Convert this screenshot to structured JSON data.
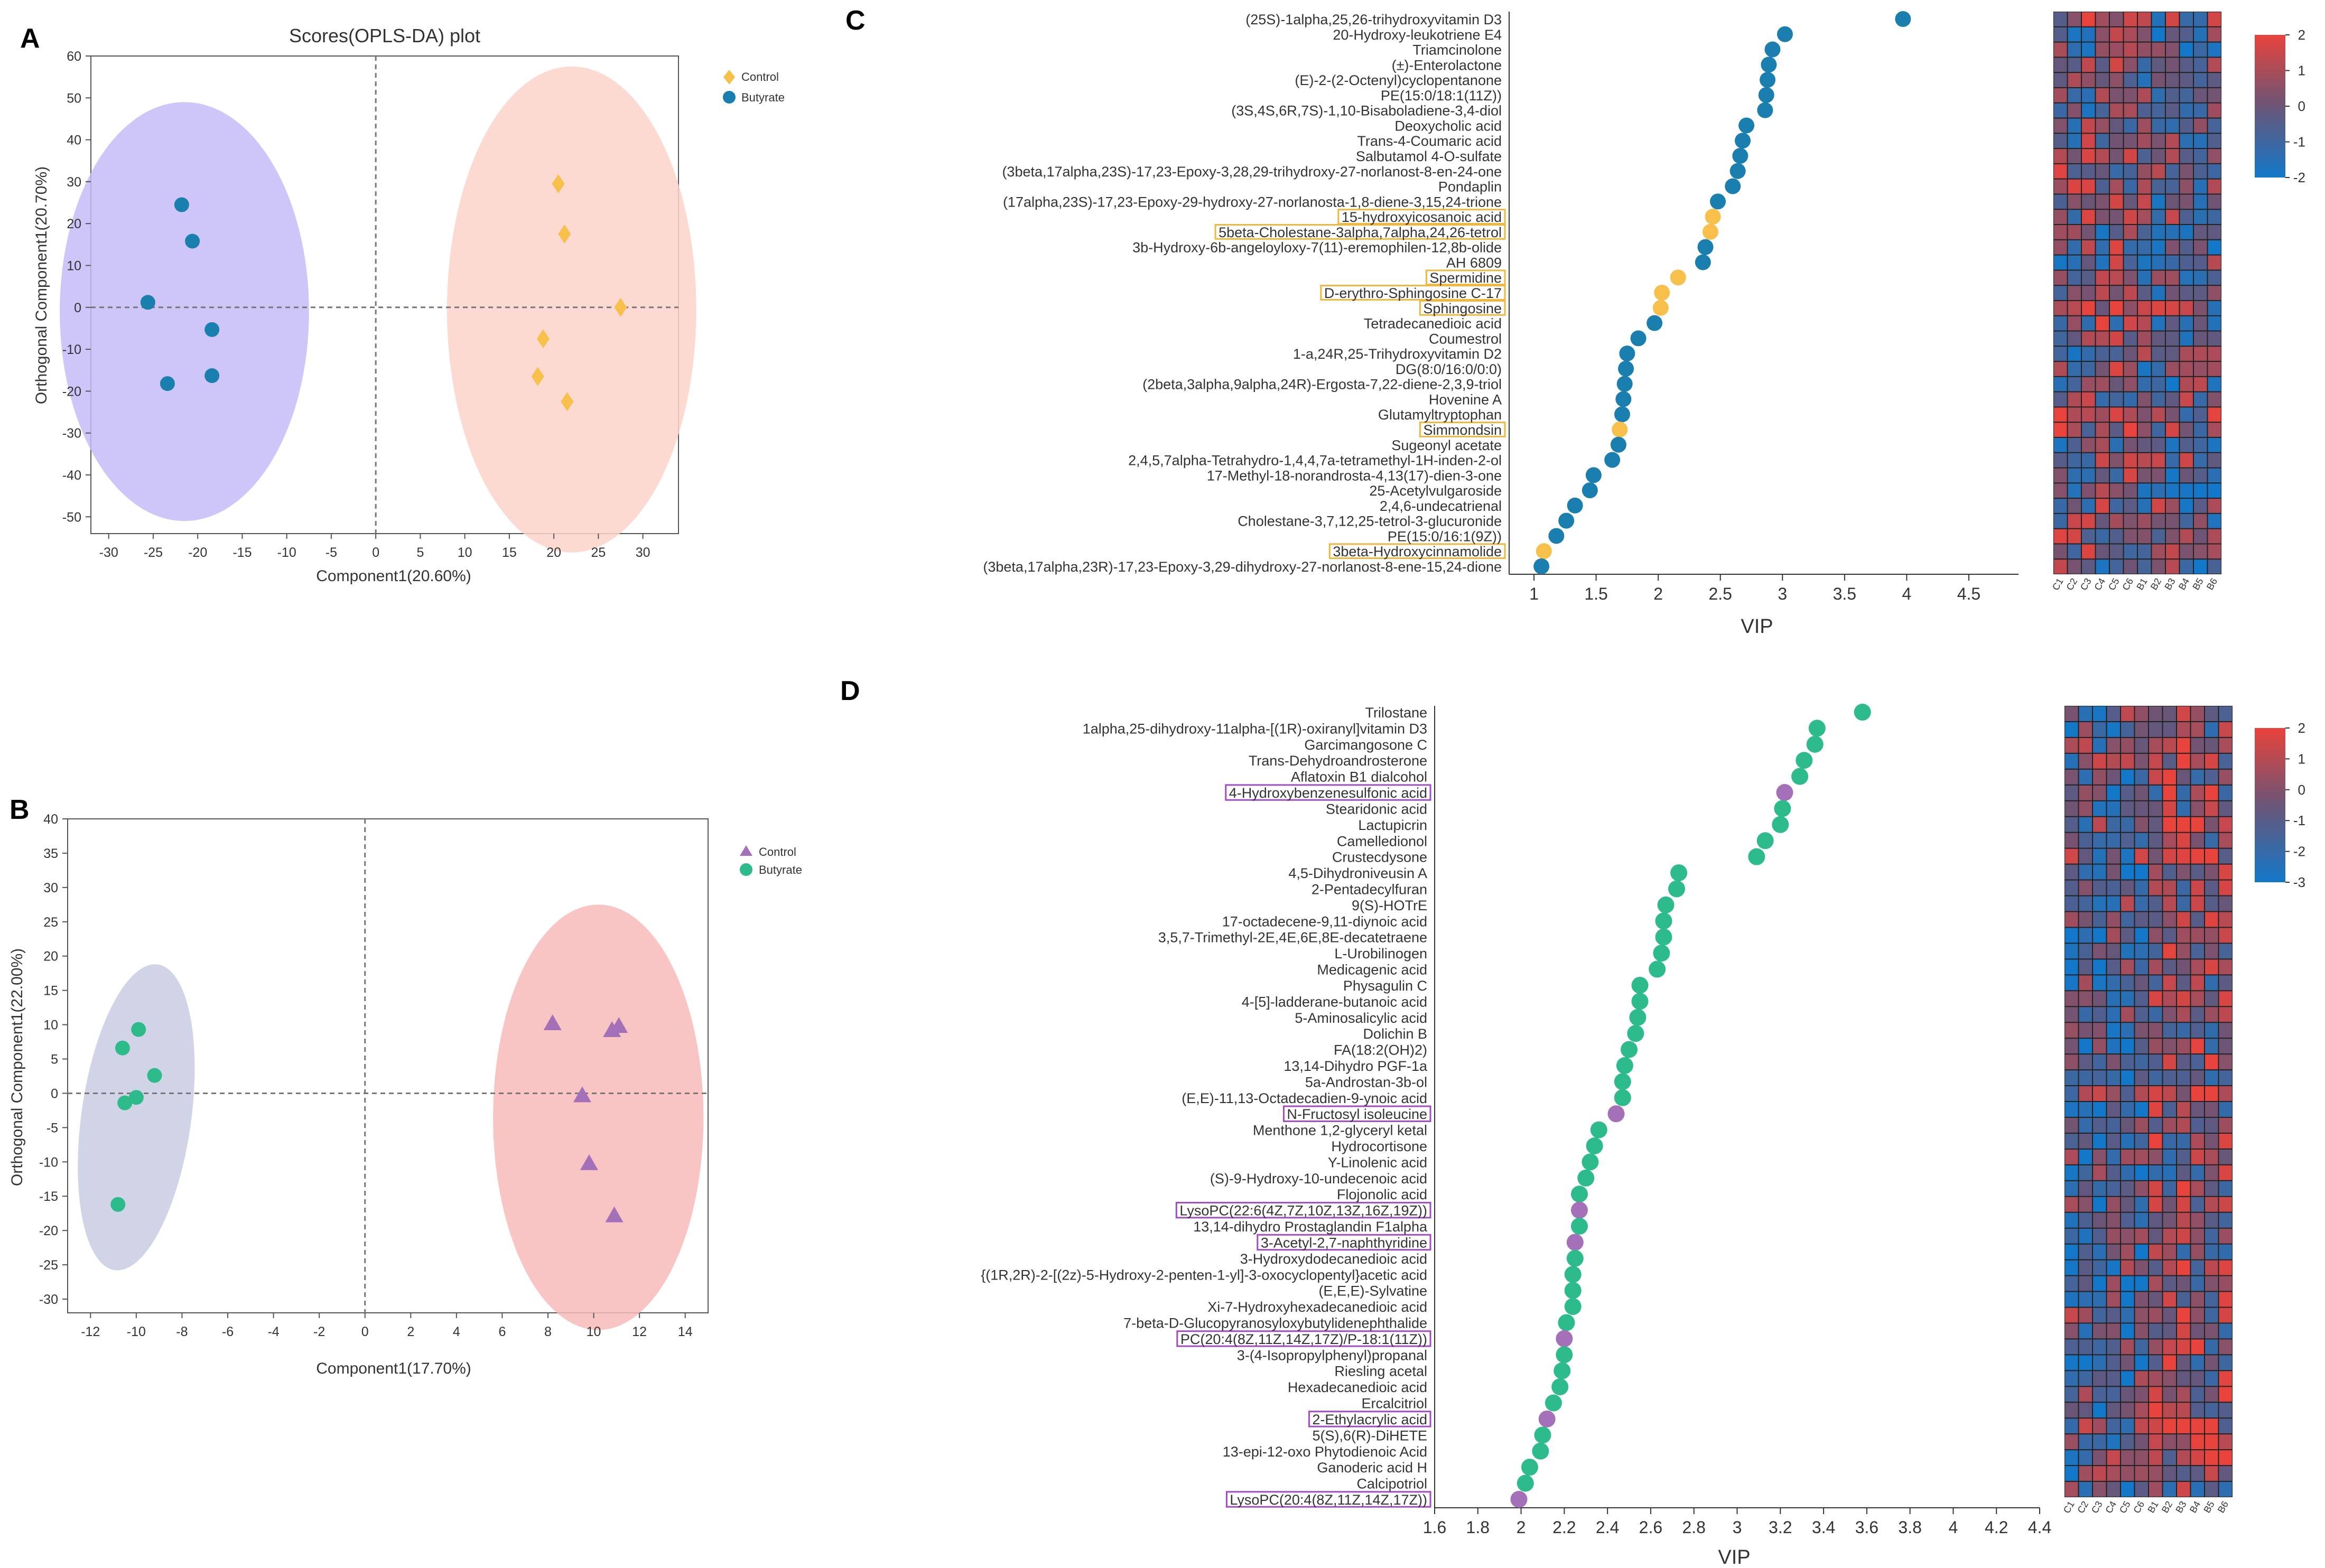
{
  "panels": {
    "A": "A",
    "B": "B",
    "C": "C",
    "D": "D"
  },
  "colors": {
    "control_gold": "#F7C04A",
    "butyrate_blue": "#1A7FAF",
    "ellipse_purple": "#C5BCF7",
    "ellipse_salmon": "#FBD3C9",
    "control_purple": "#A470B8",
    "butyrate_green": "#2DBB8C",
    "ellipse_slate": "#C9CCE3",
    "ellipse_pink": "#F8BABA",
    "highlight_gold": "#F0B73D",
    "highlight_purple": "#A54BC2",
    "heat_red": "#E8433C",
    "heat_blue": "#1378C9",
    "heat_mid": "#6A5577"
  },
  "chart_data": [
    {
      "id": "A",
      "type": "scatter",
      "title": "Scores(OPLS-DA) plot",
      "xlabel": "Component1(20.60%)",
      "ylabel": "Orthogonal Component1(20.70%)",
      "xlim": [
        -32,
        34
      ],
      "ylim": [
        -54,
        60
      ],
      "xticks": [
        -30,
        -25,
        -20,
        -15,
        -10,
        -5,
        0,
        5,
        10,
        15,
        20,
        25,
        30
      ],
      "yticks": [
        60,
        50,
        40,
        30,
        20,
        10,
        0,
        -10,
        -20,
        -30,
        -40,
        -50
      ],
      "legend": [
        "Control",
        "Butyrate"
      ],
      "series": [
        {
          "name": "Control",
          "marker": "diamond",
          "color": "#F7C04A",
          "x": [
            20.5,
            21.2,
            27.5,
            18.8,
            18.2,
            21.5
          ],
          "y": [
            29.5,
            17.5,
            0,
            -7.5,
            -16.5,
            -22.5
          ]
        },
        {
          "name": "Butyrate",
          "marker": "circle",
          "color": "#1A7FAF",
          "x": [
            -21.8,
            -20.6,
            -25.6,
            -18.4,
            -18.4,
            -23.4
          ],
          "y": [
            24.5,
            15.8,
            1.2,
            -5.3,
            -16.3,
            -18.2
          ]
        }
      ],
      "ellipses": [
        {
          "group": "Butyrate",
          "cx": -21.5,
          "cy": -1,
          "rx": 14,
          "ry": 50,
          "color": "#C5BCF7"
        },
        {
          "group": "Control",
          "cx": 22,
          "cy": -0.5,
          "rx": 14,
          "ry": 58,
          "color": "#FBD3C9"
        }
      ]
    },
    {
      "id": "B",
      "type": "scatter",
      "title": "",
      "xlabel": "Component1(17.70%)",
      "ylabel": "Orthogonal Component1(22.00%)",
      "xlim": [
        -13,
        15
      ],
      "ylim": [
        -32,
        40
      ],
      "xticks": [
        -12,
        -10,
        -8,
        -6,
        -4,
        -2,
        0,
        2,
        4,
        6,
        8,
        10,
        12,
        14
      ],
      "yticks": [
        40,
        35,
        30,
        25,
        20,
        15,
        10,
        5,
        0,
        -5,
        -10,
        -15,
        -20,
        -25,
        -30
      ],
      "legend": [
        "Control",
        "Butyrate"
      ],
      "series": [
        {
          "name": "Control",
          "marker": "triangle",
          "color": "#A470B8",
          "x": [
            8.2,
            10.8,
            11.1,
            9.5,
            9.8,
            10.9
          ],
          "y": [
            10.2,
            9.2,
            9.8,
            -0.3,
            -10.2,
            -17.8
          ]
        },
        {
          "name": "Butyrate",
          "marker": "circle",
          "color": "#2DBB8C",
          "x": [
            -9.9,
            -10.6,
            -9.2,
            -10.0,
            -10.5,
            -10.8
          ],
          "y": [
            9.3,
            6.6,
            2.6,
            -0.6,
            -1.4,
            -16.2
          ]
        }
      ],
      "ellipses": [
        {
          "group": "Butyrate",
          "cx": -10.0,
          "cy": -3.5,
          "rx": 2.4,
          "ry": 22.5,
          "rot": 8,
          "color": "#C9CCE3"
        },
        {
          "group": "Control",
          "cx": 10.2,
          "cy": -3.5,
          "rx": 4.6,
          "ry": 31,
          "color": "#F8BABA"
        }
      ]
    },
    {
      "id": "C",
      "type": "scatter",
      "title": "",
      "xlabel": "VIP",
      "xlim": [
        0.8,
        4.9
      ],
      "xticks": [
        1,
        1.5,
        2,
        2.5,
        3,
        3.5,
        4,
        4.5
      ],
      "xtick_labels": [
        "1",
        "1.5",
        "2",
        "2.5",
        "3",
        "3.5",
        "4",
        "4.5"
      ],
      "labels": [
        "(25S)-1alpha,25,26-trihydroxyvitamin D3",
        "20-Hydroxy-leukotriene E4",
        "Triamcinolone",
        "(±)-Enterolactone",
        "(E)-2-(2-Octenyl)cyclopentanone",
        "PE(15:0/18:1(11Z))",
        "(3S,4S,6R,7S)-1,10-Bisaboladiene-3,4-diol",
        "Deoxycholic acid",
        "Trans-4-Coumaric acid",
        "Salbutamol 4-O-sulfate",
        "(3beta,17alpha,23S)-17,23-Epoxy-3,28,29-trihydroxy-27-norlanost-8-en-24-one",
        "Pondaplin",
        "(17alpha,23S)-17,23-Epoxy-29-hydroxy-27-norlanosta-1,8-diene-3,15,24-trione",
        "15-hydroxyicosanoic acid",
        "5beta-Cholestane-3alpha,7alpha,24,26-tetrol",
        "3b-Hydroxy-6b-angeloyloxy-7(11)-eremophilen-12,8b-olide",
        "AH 6809",
        "Spermidine",
        "D-erythro-Sphingosine C-17",
        "Sphingosine",
        "Tetradecanedioic acid",
        "Coumestrol",
        "1-a,24R,25-Trihydroxyvitamin D2",
        "DG(8:0/16:0/0:0)",
        "(2beta,3alpha,9alpha,24R)-Ergosta-7,22-diene-2,3,9-triol",
        "Hovenine A",
        "Glutamyltryptophan",
        "Simmondsin",
        "Sugeonyl acetate",
        "2,4,5,7alpha-Tetrahydro-1,4,4,7a-tetramethyl-1H-inden-2-ol",
        "17-Methyl-18-norandrosta-4,13(17)-dien-3-one",
        "25-Acetylvulgaroside",
        "2,4,6-undecatrienal",
        "Cholestane-3,7,12,25-tetrol-3-glucuronide",
        "PE(15:0/16:1(9Z))",
        "3beta-Hydroxycinnamolide",
        "(3beta,17alpha,23R)-17,23-Epoxy-3,29-dihydroxy-27-norlanost-8-ene-15,24-dione"
      ],
      "values": [
        3.97,
        3.02,
        2.92,
        2.89,
        2.88,
        2.87,
        2.86,
        2.71,
        2.68,
        2.66,
        2.64,
        2.6,
        2.48,
        2.44,
        2.42,
        2.38,
        2.36,
        2.16,
        2.03,
        2.02,
        1.97,
        1.84,
        1.75,
        1.74,
        1.73,
        1.72,
        1.71,
        1.69,
        1.68,
        1.63,
        1.48,
        1.45,
        1.33,
        1.26,
        1.18,
        1.08,
        1.06
      ],
      "group": [
        "B",
        "B",
        "B",
        "B",
        "B",
        "B",
        "B",
        "B",
        "B",
        "B",
        "B",
        "B",
        "B",
        "C",
        "C",
        "B",
        "B",
        "C",
        "C",
        "C",
        "B",
        "B",
        "B",
        "B",
        "B",
        "B",
        "B",
        "C",
        "B",
        "B",
        "B",
        "B",
        "B",
        "B",
        "B",
        "C",
        "B"
      ],
      "highlighted": [
        13,
        14,
        17,
        18,
        19,
        27,
        35
      ],
      "highlight_color": "#F0B73D"
    },
    {
      "id": "D",
      "type": "scatter",
      "title": "",
      "xlabel": "VIP",
      "xlim": [
        1.6,
        4.4
      ],
      "xticks": [
        1.6,
        1.8,
        2,
        2.2,
        2.4,
        2.6,
        2.8,
        3,
        3.2,
        3.4,
        3.6,
        3.8,
        4,
        4.2,
        4.4
      ],
      "xtick_labels": [
        "1.6",
        "1.8",
        "2",
        "2.2",
        "2.4",
        "2.6",
        "2.8",
        "3",
        "3.2",
        "3.4",
        "3.6",
        "3.8",
        "4",
        "4.2",
        "4.4"
      ],
      "labels": [
        "Trilostane",
        "1alpha,25-dihydroxy-11alpha-[(1R)-oxiranyl]vitamin D3",
        "Garcimangosone C",
        "Trans-Dehydroandrosterone",
        "Aflatoxin B1 dialcohol",
        "4-Hydroxybenzenesulfonic acid",
        "Stearidonic acid",
        "Lactupicrin",
        "Camelledionol",
        "Crustecdysone",
        "4,5-Dihydroniveusin A",
        "2-Pentadecylfuran",
        "9(S)-HOTrE",
        "17-octadecene-9,11-diynoic acid",
        "3,5,7-Trimethyl-2E,4E,6E,8E-decatetraene",
        "L-Urobilinogen",
        "Medicagenic acid",
        "Physagulin C",
        "4-[5]-ladderane-butanoic acid",
        "5-Aminosalicylic acid",
        "Dolichin B",
        "FA(18:2(OH)2)",
        "13,14-Dihydro PGF-1a",
        "5a-Androstan-3b-ol",
        "(E,E)-11,13-Octadecadien-9-ynoic acid",
        "N-Fructosyl isoleucine",
        "Menthone 1,2-glyceryl ketal",
        "Hydrocortisone",
        "Y-Linolenic acid",
        "(S)-9-Hydroxy-10-undecenoic acid",
        "Flojonolic acid",
        "LysoPC(22:6(4Z,7Z,10Z,13Z,16Z,19Z))",
        "13,14-dihydro Prostaglandin F1alpha",
        "3-Acetyl-2,7-naphthyridine",
        "3-Hydroxydodecanedioic acid",
        "{(1R,2R)-2-[(2z)-5-Hydroxy-2-penten-1-yl]-3-oxocyclopentyl}acetic acid",
        "(E,E,E)-Sylvatine",
        "Xi-7-Hydroxyhexadecanedioic acid",
        "7-beta-D-Glucopyranosyloxybutylidenephthalide",
        "PC(20:4(8Z,11Z,14Z,17Z)/P-18:1(11Z))",
        "3-(4-Isopropylphenyl)propanal",
        "Riesling acetal",
        "Hexadecanedioic acid",
        "Ercalcitriol",
        "2-Ethylacrylic acid",
        "5(S),6(R)-DiHETE",
        "13-epi-12-oxo Phytodienoic Acid",
        "Ganoderic acid H",
        "Calcipotriol",
        "LysoPC(20:4(8Z,11Z,14Z,17Z))"
      ],
      "values": [
        3.58,
        3.37,
        3.36,
        3.31,
        3.29,
        3.22,
        3.21,
        3.2,
        3.13,
        3.09,
        2.73,
        2.72,
        2.67,
        2.66,
        2.66,
        2.65,
        2.63,
        2.55,
        2.55,
        2.54,
        2.53,
        2.5,
        2.48,
        2.47,
        2.47,
        2.44,
        2.36,
        2.34,
        2.32,
        2.3,
        2.27,
        2.27,
        2.27,
        2.25,
        2.25,
        2.24,
        2.24,
        2.24,
        2.21,
        2.2,
        2.2,
        2.19,
        2.18,
        2.15,
        2.12,
        2.1,
        2.09,
        2.04,
        2.02,
        1.99
      ],
      "group": [
        "G",
        "G",
        "G",
        "G",
        "G",
        "P",
        "G",
        "G",
        "G",
        "G",
        "G",
        "G",
        "G",
        "G",
        "G",
        "G",
        "G",
        "G",
        "G",
        "G",
        "G",
        "G",
        "G",
        "G",
        "G",
        "P",
        "G",
        "G",
        "G",
        "G",
        "G",
        "P",
        "G",
        "P",
        "G",
        "G",
        "G",
        "G",
        "G",
        "P",
        "G",
        "G",
        "G",
        "G",
        "P",
        "G",
        "G",
        "G",
        "G",
        "P"
      ],
      "highlighted": [
        5,
        25,
        31,
        33,
        39,
        44,
        49
      ],
      "highlight_color": "#A54BC2"
    }
  ],
  "heatmaps": [
    {
      "id": "C",
      "col_labels": [
        "C1",
        "C2",
        "C3",
        "C4",
        "C5",
        "C6",
        "B1",
        "B2",
        "B3",
        "B4",
        "B5",
        "B6"
      ],
      "colorbar_ticks": [
        "2",
        "1",
        "0",
        "-1",
        "-2"
      ],
      "colorbar_range": [
        -2,
        2
      ],
      "rows": 37
    },
    {
      "id": "D",
      "col_labels": [
        "C1",
        "C2",
        "C3",
        "C4",
        "C5",
        "C6",
        "B1",
        "B2",
        "B3",
        "B4",
        "B5",
        "B6"
      ],
      "colorbar_ticks": [
        "2",
        "1",
        "0",
        "-1",
        "-2",
        "-3"
      ],
      "colorbar_range": [
        -3,
        2
      ],
      "rows": 50
    }
  ]
}
